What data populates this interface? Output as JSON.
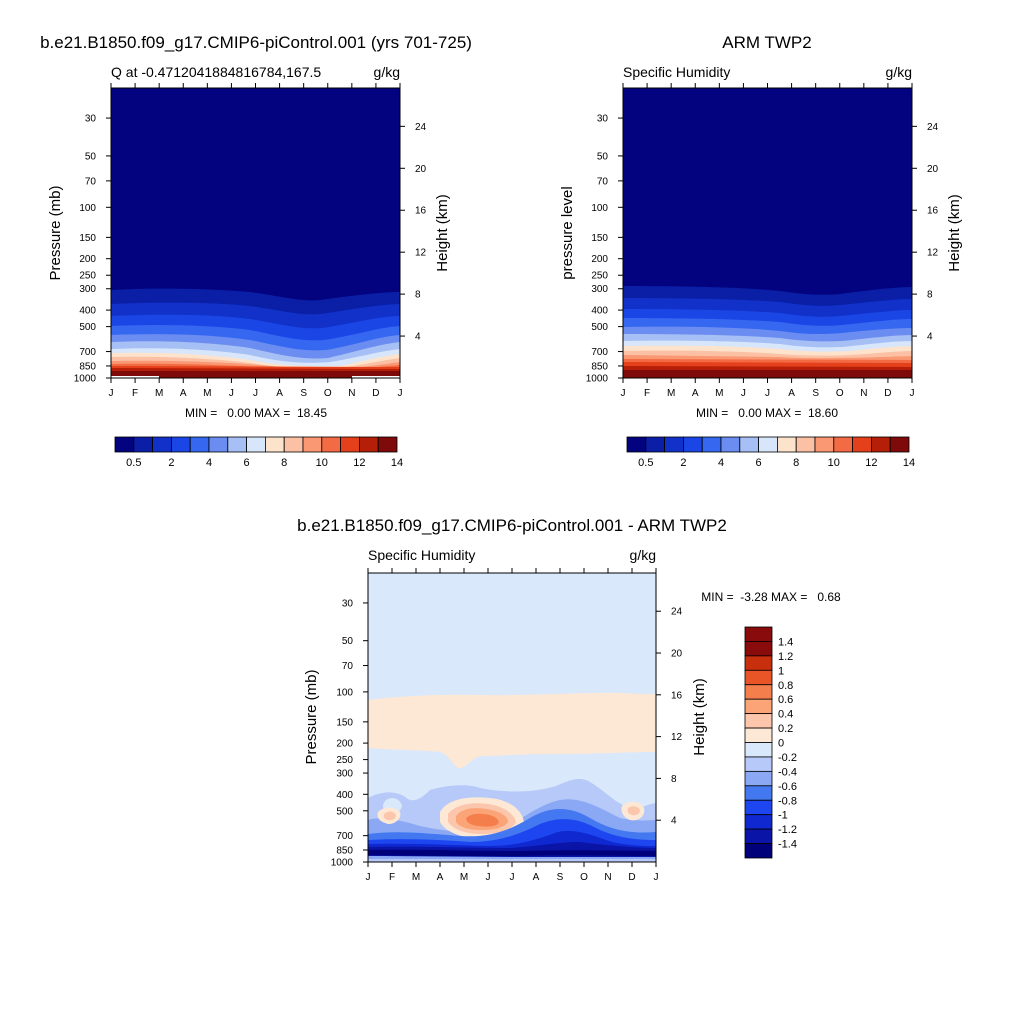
{
  "chart_data": [
    {
      "id": "model",
      "type": "heatmap",
      "title": "b.e21.B1850.f09_g17.CMIP6-piControl.001 (yrs 701-725)",
      "subtitle_left": "Q at -0.47120418848167​84,167.5",
      "subtitle_right": "g/kg",
      "xlabel": "",
      "ylabel": "Pressure (mb)",
      "ylabel_right": "Height (km)",
      "x_ticks": [
        "J",
        "F",
        "M",
        "A",
        "M",
        "J",
        "J",
        "A",
        "S",
        "O",
        "N",
        "D",
        "J"
      ],
      "y_ticks": [
        30,
        50,
        70,
        100,
        150,
        200,
        250,
        300,
        400,
        500,
        700,
        850,
        1000
      ],
      "y_range": [
        20,
        1000
      ],
      "height_ticks": [
        4,
        8,
        12,
        16,
        20,
        24
      ],
      "stats": "MIN =   0.00 MAX =  18.45",
      "colorbar_labels": [
        "0.5",
        "2",
        "4",
        "6",
        "8",
        "10",
        "12",
        "14"
      ]
    },
    {
      "id": "obs",
      "type": "heatmap",
      "title": "ARM TWP2",
      "subtitle_left": "Specific Humidity",
      "subtitle_right": "g/kg",
      "xlabel": "",
      "ylabel": "pressure level",
      "ylabel_right": "Height (km)",
      "x_ticks": [
        "J",
        "F",
        "M",
        "A",
        "M",
        "J",
        "J",
        "A",
        "S",
        "O",
        "N",
        "D",
        "J"
      ],
      "y_ticks": [
        30,
        50,
        70,
        100,
        150,
        200,
        250,
        300,
        400,
        500,
        700,
        850,
        1000
      ],
      "y_range": [
        20,
        1000
      ],
      "height_ticks": [
        4,
        8,
        12,
        16,
        20,
        24
      ],
      "stats": "MIN =   0.00 MAX =  18.60",
      "colorbar_labels": [
        "0.5",
        "2",
        "4",
        "6",
        "8",
        "10",
        "12",
        "14"
      ]
    },
    {
      "id": "diff",
      "type": "heatmap",
      "title": "b.e21.B1850.f09_g17.CMIP6-piControl.001 - ARM TWP2",
      "subtitle_left": "Specific Humidity",
      "subtitle_right": "g/kg",
      "xlabel": "",
      "ylabel": "Pressure (mb)",
      "ylabel_right": "Height (km)",
      "x_ticks": [
        "J",
        "F",
        "M",
        "A",
        "M",
        "J",
        "J",
        "A",
        "S",
        "O",
        "N",
        "D",
        "J"
      ],
      "y_ticks": [
        30,
        50,
        70,
        100,
        150,
        200,
        250,
        300,
        400,
        500,
        700,
        850,
        1000
      ],
      "y_range": [
        20,
        1000
      ],
      "height_ticks": [
        4,
        8,
        12,
        16,
        20,
        24
      ],
      "stats": "MIN =  -3.28 MAX =   0.68",
      "colorbar_labels": [
        "1.4",
        "1.2",
        "1",
        "0.8",
        "0.6",
        "0.4",
        "0.2",
        "0",
        "-0.2",
        "-0.4",
        "-0.6",
        "-0.8",
        "-1",
        "-1.2",
        "-1.4"
      ]
    }
  ],
  "palettes": {
    "sequential": [
      "#03037f",
      "#0a1ea6",
      "#1131c8",
      "#1a46e6",
      "#3567f0",
      "#6b8cf0",
      "#a6bff5",
      "#d7e6fb",
      "#fde3cc",
      "#fcc1a4",
      "#f99873",
      "#f36b45",
      "#e4401c",
      "#b51f08",
      "#7f0a0a"
    ],
    "diverging": [
      "#00007a",
      "#0a14a6",
      "#0f28d0",
      "#1e46f0",
      "#4478f0",
      "#8aa8f4",
      "#b6c9f8",
      "#d9e8fb",
      "#fde8d6",
      "#fcc6ad",
      "#fba478",
      "#f47f4c",
      "#ea5528",
      "#c72f0d",
      "#8a0b0b"
    ]
  }
}
